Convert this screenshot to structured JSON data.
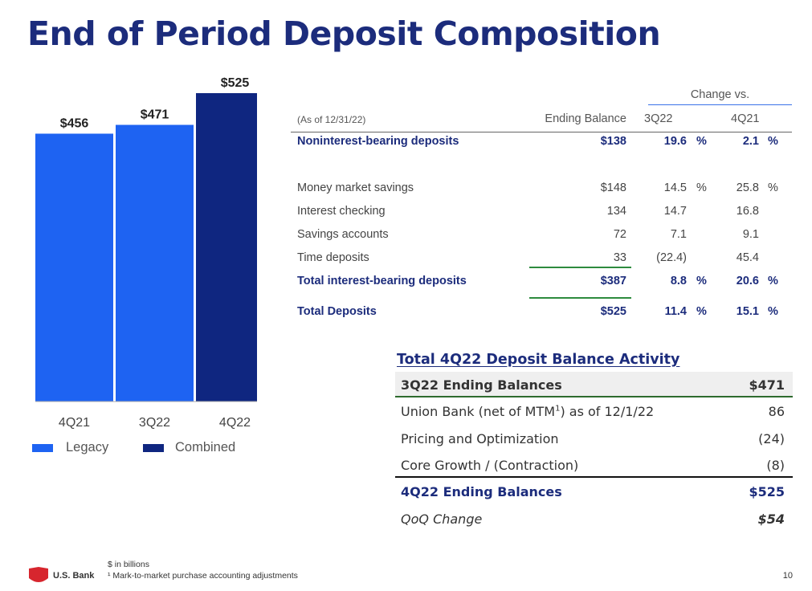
{
  "title": "End of Period Deposit Composition",
  "chart_data": {
    "type": "bar",
    "categories": [
      "4Q21",
      "3Q22",
      "4Q22"
    ],
    "values": [
      456,
      471,
      525
    ],
    "value_labels": [
      "$456",
      "$471",
      "$525"
    ],
    "bar_colors": [
      "#1e63f2",
      "#1e63f2",
      "#0f2680"
    ],
    "legend": [
      {
        "name": "Legacy",
        "color": "#1e63f2"
      },
      {
        "name": "Combined",
        "color": "#0f2680"
      }
    ],
    "ylim": [
      0,
      525
    ],
    "grid": false,
    "legend_position": "bottom"
  },
  "table": {
    "change_header": "Change vs.",
    "headers": {
      "label": "(As of 12/31/22)",
      "ending": "Ending Balance",
      "q3": "3Q22",
      "q4": "4Q21"
    },
    "rows": [
      {
        "label": "Noninterest-bearing deposits",
        "ending": "$138",
        "q3": "19.6",
        "q3p": "%",
        "q4": "2.1",
        "q4p": "%",
        "bold": true
      },
      {
        "label": "Money market savings",
        "ending": "$148",
        "q3": "14.5",
        "q3p": "%",
        "q4": "25.8",
        "q4p": "%",
        "bold": false
      },
      {
        "label": "Interest checking",
        "ending": "134",
        "q3": "14.7",
        "q3p": "",
        "q4": "16.8",
        "q4p": "",
        "bold": false
      },
      {
        "label": "Savings accounts",
        "ending": "72",
        "q3": "7.1",
        "q3p": "",
        "q4": "9.1",
        "q4p": "",
        "bold": false
      },
      {
        "label": "Time deposits",
        "ending": "33",
        "q3": "(22.4)",
        "q3p": "",
        "q4": "45.4",
        "q4p": "",
        "bold": false
      },
      {
        "label": "Total interest-bearing deposits",
        "ending": "$387",
        "q3": "8.8",
        "q3p": "%",
        "q4": "20.6",
        "q4p": "%",
        "bold": true
      },
      {
        "label": "Total Deposits",
        "ending": "$525",
        "q3": "11.4",
        "q3p": "%",
        "q4": "15.1",
        "q4p": "%",
        "bold": true
      }
    ]
  },
  "activity": {
    "title": "Total 4Q22 Deposit Balance Activity",
    "rows": [
      {
        "label": "3Q22 Ending Balances",
        "value": "$471"
      },
      {
        "label": "Union Bank (net of MTM",
        "sup": "1",
        "label_after": ") as of 12/1/22",
        "value": "86"
      },
      {
        "label": "Pricing and Optimization",
        "value": "(24)"
      },
      {
        "label": "Core Growth / (Contraction)",
        "value": "(8)"
      },
      {
        "label": "4Q22 Ending Balances",
        "value": "$525"
      },
      {
        "label": "QoQ Change",
        "value": "$54"
      }
    ]
  },
  "footer": {
    "logo_text": "U.S. Bank",
    "note1": "$ in billions",
    "note2": "¹ Mark-to-market purchase accounting adjustments",
    "page": "10"
  }
}
